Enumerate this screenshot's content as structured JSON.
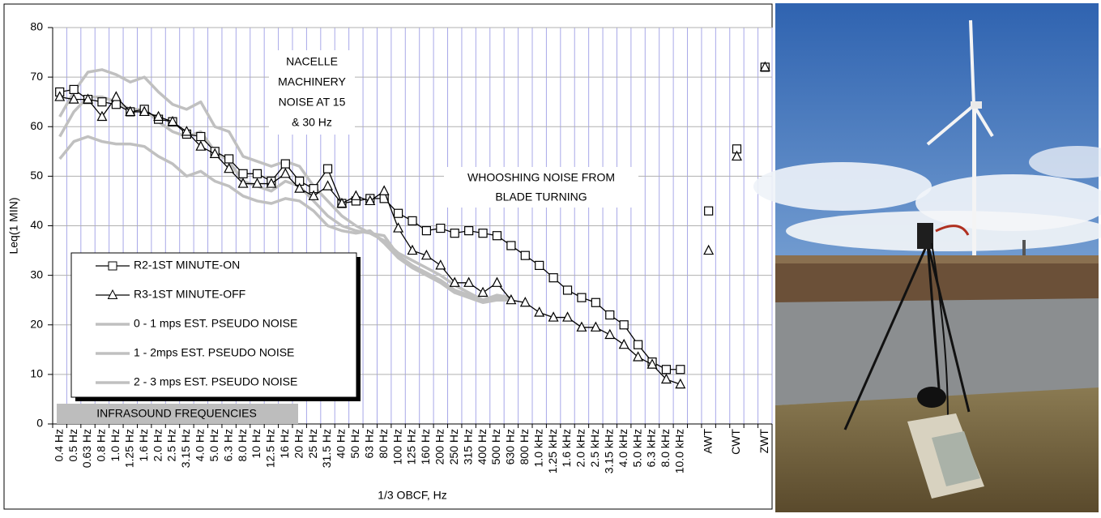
{
  "chart_data": {
    "type": "line",
    "y_label": "Leq(1 MIN)",
    "x_label": "1/3 OBCF, Hz",
    "categories": [
      "0.4 Hz",
      "0.5 Hz",
      "0.63 Hz",
      "0.8 Hz",
      "1.0 Hz",
      "1.25 Hz",
      "1.6 Hz",
      "2.0 Hz",
      "2.5 Hz",
      "3.15 Hz",
      "4.0 Hz",
      "5.0 Hz",
      "6.3 Hz",
      "8.0 Hz",
      "10 Hz",
      "12.5 Hz",
      "16 Hz",
      "20 Hz",
      "25 Hz",
      "31.5 Hz",
      "40 Hz",
      "50 Hz",
      "63 Hz",
      "80 Hz",
      "100 Hz",
      "125 Hz",
      "160 Hz",
      "200 Hz",
      "250 Hz",
      "315 Hz",
      "400 Hz",
      "500 Hz",
      "630 Hz",
      "800 Hz",
      "1.0 kHz",
      "1.25 kHz",
      "1.6 kHz",
      "2.0 kHz",
      "2.5 kHz",
      "3.15 kHz",
      "4.0 kHz",
      "5.0 kHz",
      "6.3 kHz",
      "8.0 kHz",
      "10.0 kHz",
      null,
      "AWT",
      null,
      "CWT",
      null,
      "ZWT"
    ],
    "series": [
      {
        "name": "R2-1ST MINUTE-ON",
        "color": "#000000",
        "marker": "square",
        "values": [
          67,
          67.5,
          65.5,
          65,
          64.5,
          63,
          63.5,
          61.5,
          61,
          58.5,
          58,
          55,
          53.5,
          50.5,
          50.5,
          49,
          52.5,
          49,
          47.5,
          51.5,
          44.5,
          45,
          45.5,
          45.5,
          42.5,
          41,
          39,
          39.5,
          38.5,
          39,
          38.5,
          38,
          36,
          34,
          32,
          29.5,
          27,
          25.5,
          24.5,
          22,
          20,
          16,
          12.5,
          11,
          11,
          null,
          43,
          null,
          55.5,
          null,
          72
        ]
      },
      {
        "name": "R3-1ST MINUTE-OFF",
        "color": "#000000",
        "marker": "triangle",
        "values": [
          66,
          65.5,
          65.5,
          62,
          66,
          63,
          63,
          62,
          61,
          59,
          56,
          54.5,
          51.5,
          48.5,
          48.5,
          48.5,
          50.5,
          47.5,
          46,
          48,
          44.5,
          46,
          45,
          47,
          39.5,
          35,
          34,
          32,
          28.5,
          28.5,
          26.5,
          28.5,
          25,
          24.5,
          22.5,
          21.5,
          21.5,
          19.5,
          19.5,
          18,
          16,
          13.5,
          12,
          9,
          8,
          null,
          35,
          null,
          54,
          null,
          72
        ]
      },
      {
        "name": "0 - 1 mps EST. PSEUDO NOISE",
        "color": "#c0c0c0",
        "values": [
          53.5,
          57,
          58,
          57,
          56.5,
          56.5,
          56,
          54,
          52.5,
          50,
          51,
          49,
          48,
          46,
          45,
          44.5,
          45.5,
          45,
          43,
          40,
          39,
          38.5,
          39,
          36.5,
          33.5,
          31.5,
          30,
          28.5,
          26.5,
          25.5,
          24.5,
          25,
          25,
          null,
          null,
          null,
          null,
          null,
          null,
          null,
          null,
          null,
          null,
          null,
          null,
          null,
          null,
          null,
          null,
          null,
          null
        ]
      },
      {
        "name": "1 - 2mps EST. PSEUDO NOISE",
        "color": "#c0c0c0",
        "values": [
          58,
          63,
          66,
          66,
          65,
          63.5,
          63.5,
          61,
          59,
          58,
          59,
          55,
          53,
          49,
          48,
          47,
          49,
          48,
          45,
          42,
          40,
          39,
          38.5,
          38,
          34,
          32,
          30.5,
          29,
          27,
          26,
          25,
          25.5,
          25,
          null,
          null,
          null,
          null,
          null,
          null,
          null,
          null,
          null,
          null,
          null,
          null,
          null,
          null,
          null,
          null,
          null,
          null
        ]
      },
      {
        "name": "2 - 3 mps EST. PSEUDO NOISE",
        "color": "#c0c0c0",
        "values": [
          62,
          67,
          71,
          71.5,
          70.5,
          69,
          70,
          67,
          64.5,
          63.5,
          65,
          60,
          59,
          54,
          53,
          52,
          53,
          52,
          48,
          45,
          42,
          40,
          38.5,
          37,
          34.5,
          33,
          31.5,
          30,
          28,
          26.5,
          25,
          26,
          25.5,
          null,
          null,
          null,
          null,
          null,
          null,
          null,
          null,
          null,
          null,
          null,
          null,
          null,
          null,
          null,
          null,
          null,
          null
        ]
      }
    ],
    "ylim": [
      0,
      80
    ],
    "yticks": [
      0,
      10,
      20,
      30,
      40,
      50,
      60,
      70,
      80
    ],
    "grid": true,
    "annotations": [
      {
        "lines": [
          "NACELLE",
          "MACHINERY",
          "NOISE AT 15",
          "& 30 Hz"
        ]
      },
      {
        "lines": [
          "WHOOSHING NOISE FROM",
          "BLADE TURNING"
        ]
      },
      {
        "lines": [
          "INFRASOUND FREQUENCIES"
        ]
      }
    ]
  }
}
